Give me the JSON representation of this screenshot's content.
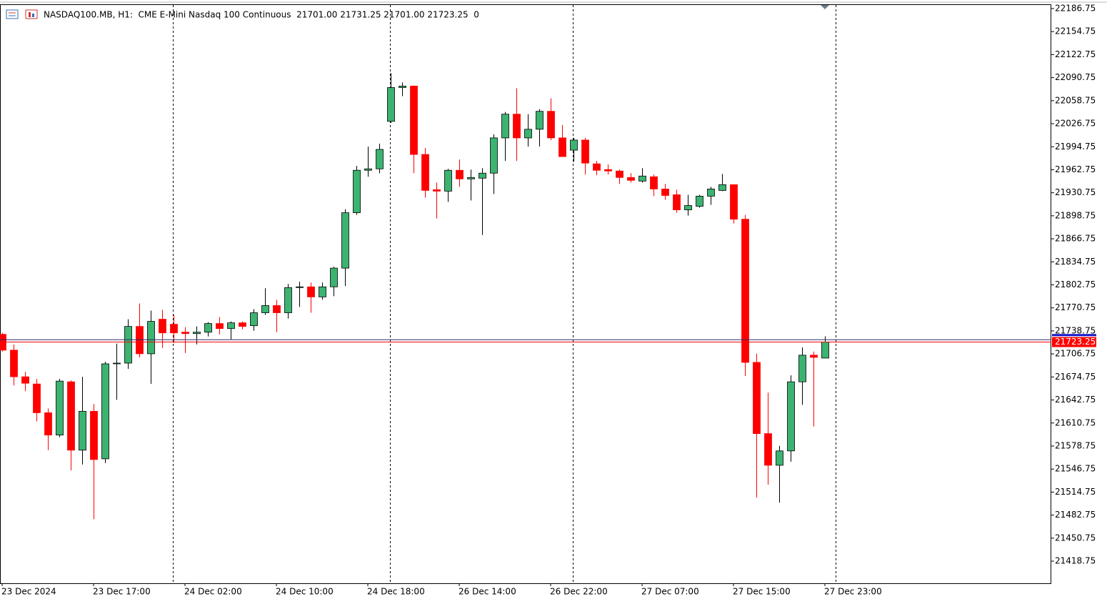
{
  "chart_data": {
    "type": "candlestick",
    "header_text": "NASDAQ100.MB, H1:  CME E-Mini Nasdaq 100 Continuous  21701.00 21731.25 21701.00 21723.25  0",
    "categories": [
      "23 Dec 2024",
      null,
      null,
      null,
      null,
      null,
      null,
      null,
      "23 Dec 17:00",
      null,
      null,
      null,
      null,
      null,
      null,
      null,
      "24 Dec 02:00",
      null,
      null,
      null,
      null,
      null,
      null,
      null,
      "24 Dec 10:00",
      null,
      null,
      null,
      null,
      null,
      null,
      null,
      "24 Dec 18:00",
      null,
      null,
      null,
      null,
      null,
      null,
      null,
      "26 Dec 14:00",
      null,
      null,
      null,
      null,
      null,
      null,
      null,
      "26 Dec 22:00",
      null,
      null,
      null,
      null,
      null,
      null,
      null,
      "27 Dec 07:00",
      null,
      null,
      null,
      null,
      null,
      null,
      null,
      "27 Dec 15:00",
      null,
      null,
      null,
      null,
      null,
      null,
      null,
      "27 Dec 23:00"
    ],
    "open": [
      21734,
      21712,
      21675,
      21665,
      21625,
      21594,
      21668,
      21573,
      21627,
      21561,
      21693,
      21694,
      21745,
      21707,
      21755,
      21748,
      21737,
      21735,
      21737,
      21749,
      21742,
      21750,
      21746,
      21764,
      21774,
      21764,
      21799,
      21800,
      21786,
      21800,
      21826,
      21903,
      21962,
      21964,
      22030,
      22077,
      22079,
      21984,
      21935,
      21933,
      21962,
      21950,
      21951,
      21958,
      22007,
      22040,
      22007,
      22019,
      22044,
      22007,
      21990,
      22004,
      21971,
      21963,
      21961,
      21952,
      21947,
      21953,
      21936,
      21928,
      21907,
      21912,
      21926,
      21934,
      21942,
      21894,
      21695,
      21596,
      21552,
      21572,
      21668,
      21705,
      21701
    ],
    "high": [
      21736,
      21720,
      21682,
      21672,
      21631,
      21672,
      21670,
      21675,
      21637,
      21696,
      21721,
      21755,
      21777,
      21767,
      21768,
      21761,
      21744,
      21745,
      21751,
      21758,
      21752,
      21752,
      21769,
      21798,
      21782,
      21804,
      21807,
      21806,
      21806,
      21828,
      21908,
      21968,
      21995,
      21999,
      22097,
      22084,
      22080,
      21993,
      21945,
      21964,
      21977,
      21963,
      21965,
      22012,
      22043,
      22076,
      22040,
      22047,
      22062,
      22025,
      22007,
      22007,
      21975,
      21970,
      21963,
      21958,
      21965,
      21956,
      21943,
      21935,
      21928,
      21928,
      21939,
      21957,
      21942,
      21900,
      21707,
      21653,
      21579,
      21677,
      21716,
      21710,
      21731.25
    ],
    "low": [
      21710,
      21663,
      21655,
      21613,
      21573,
      21591,
      21545,
      21553,
      21477,
      21555,
      21643,
      21686,
      21702,
      21665,
      21715,
      21722,
      21708,
      21720,
      21731,
      21734,
      21727,
      21741,
      21739,
      21761,
      21737,
      21756,
      21772,
      21764,
      21782,
      21787,
      21801,
      21900,
      21953,
      21958,
      22028,
      22065,
      21958,
      21924,
      21895,
      21918,
      21939,
      21920,
      21872,
      21929,
      21975,
      21975,
      21995,
      21995,
      22004,
      21981,
      21974,
      21956,
      21955,
      21956,
      21943,
      21945,
      21945,
      21926,
      21921,
      21903,
      21899,
      21910,
      21914,
      21933,
      21888,
      21676,
      21507,
      21525,
      21500,
      21557,
      21636,
      21606,
      21701
    ],
    "close": [
      21712,
      21675,
      21666,
      21625,
      21594,
      21669,
      21573,
      21627,
      21560,
      21693,
      21694,
      21745,
      21707,
      21752,
      21736,
      21736,
      21735,
      21737,
      21749,
      21742,
      21750,
      21745,
      21764,
      21774,
      21764,
      21799,
      21800,
      21786,
      21800,
      21826,
      21903,
      21962,
      21964,
      21991,
      22077,
      22079,
      21984,
      21934,
      21933,
      21962,
      21950,
      21952,
      21958,
      22007,
      22040,
      22007,
      22019,
      22044,
      22007,
      21981,
      22004,
      21972,
      21962,
      21961,
      21952,
      21948,
      21954,
      21936,
      21927,
      21907,
      21913,
      21926,
      21936,
      21942,
      21894,
      21695,
      21596,
      21552,
      21572,
      21668,
      21705,
      21702,
      21723.25
    ],
    "up_color": "#3cb371",
    "down_color": "#ff0000",
    "last_price": 21723.25,
    "ask_price": 21726.5,
    "ylim": [
      21388.0,
      22192.7
    ],
    "yticks": [
      22186.75,
      22154.75,
      22122.75,
      22090.75,
      22058.75,
      22026.75,
      21994.75,
      21962.75,
      21930.75,
      21898.75,
      21866.75,
      21834.75,
      21802.75,
      21770.75,
      21738.75,
      21706.75,
      21674.75,
      21642.75,
      21610.75,
      21578.75,
      21546.75,
      21514.75,
      21482.75,
      21450.75,
      21418.75
    ]
  }
}
